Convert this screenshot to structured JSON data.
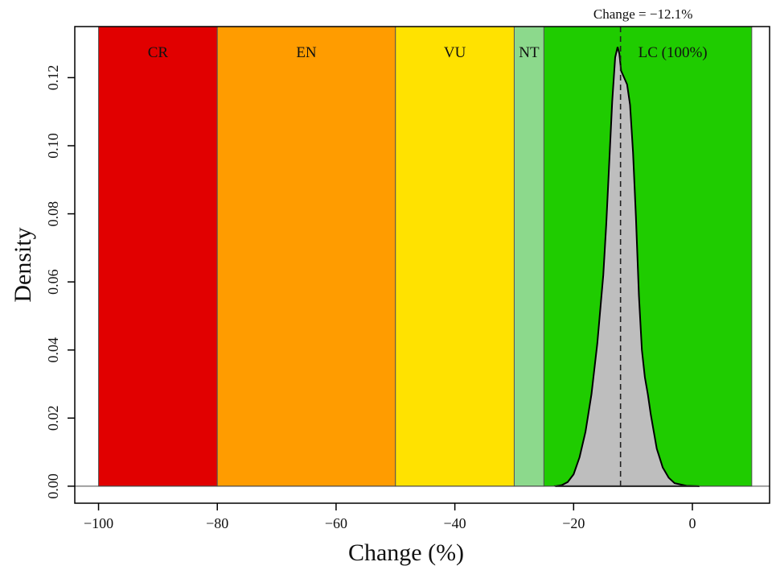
{
  "chart_data": {
    "type": "area",
    "title": "",
    "xlabel": "Change (%)",
    "ylabel": "Density",
    "xlim": [
      -104,
      13
    ],
    "ylim": [
      -0.005,
      0.135
    ],
    "x_ticks": [
      -100,
      -80,
      -60,
      -40,
      -20,
      0
    ],
    "x_tick_labels": [
      "−100",
      "−80",
      "−60",
      "−40",
      "−20",
      "0"
    ],
    "y_ticks": [
      0.0,
      0.02,
      0.04,
      0.06,
      0.08,
      0.1,
      0.12
    ],
    "y_tick_labels": [
      "0.00",
      "0.02",
      "0.04",
      "0.06",
      "0.08",
      "0.10",
      "0.12"
    ],
    "grid": false,
    "baseline": 0,
    "categories": [
      {
        "label": "CR",
        "x_start": -100,
        "x_end": -80,
        "color": "#e10000"
      },
      {
        "label": "EN",
        "x_start": -80,
        "x_end": -50,
        "color": "#ff9c00"
      },
      {
        "label": "VU",
        "x_start": -50,
        "x_end": -30,
        "color": "#ffe200"
      },
      {
        "label": "NT",
        "x_start": -30,
        "x_end": -25,
        "color": "#8cd98c"
      },
      {
        "label": "LC (100%)",
        "x_start": -25,
        "x_end": 10,
        "color": "#1fcc00"
      }
    ],
    "density": {
      "fill_color": "#bebebe",
      "points": [
        [
          -23.0,
          0.0
        ],
        [
          -22.0,
          0.0003
        ],
        [
          -21.0,
          0.0012
        ],
        [
          -20.0,
          0.0035
        ],
        [
          -19.0,
          0.0085
        ],
        [
          -18.0,
          0.016
        ],
        [
          -17.0,
          0.027
        ],
        [
          -16.0,
          0.042
        ],
        [
          -15.0,
          0.062
        ],
        [
          -14.5,
          0.077
        ],
        [
          -14.0,
          0.095
        ],
        [
          -13.5,
          0.113
        ],
        [
          -13.0,
          0.126
        ],
        [
          -12.6,
          0.129
        ],
        [
          -12.3,
          0.127
        ],
        [
          -12.0,
          0.122
        ],
        [
          -11.5,
          0.12
        ],
        [
          -11.0,
          0.118
        ],
        [
          -10.5,
          0.112
        ],
        [
          -10.0,
          0.098
        ],
        [
          -9.5,
          0.079
        ],
        [
          -9.0,
          0.056
        ],
        [
          -8.5,
          0.04
        ],
        [
          -8.0,
          0.032
        ],
        [
          -7.5,
          0.027
        ],
        [
          -7.0,
          0.021
        ],
        [
          -6.5,
          0.016
        ],
        [
          -6.0,
          0.011
        ],
        [
          -5.0,
          0.0055
        ],
        [
          -4.0,
          0.0025
        ],
        [
          -3.0,
          0.0009
        ],
        [
          -1.0,
          0.0001
        ],
        [
          1.0,
          0.0
        ]
      ]
    },
    "vline": {
      "x": -12.1,
      "style": "dashed",
      "label": "Change = −12.1%"
    }
  }
}
